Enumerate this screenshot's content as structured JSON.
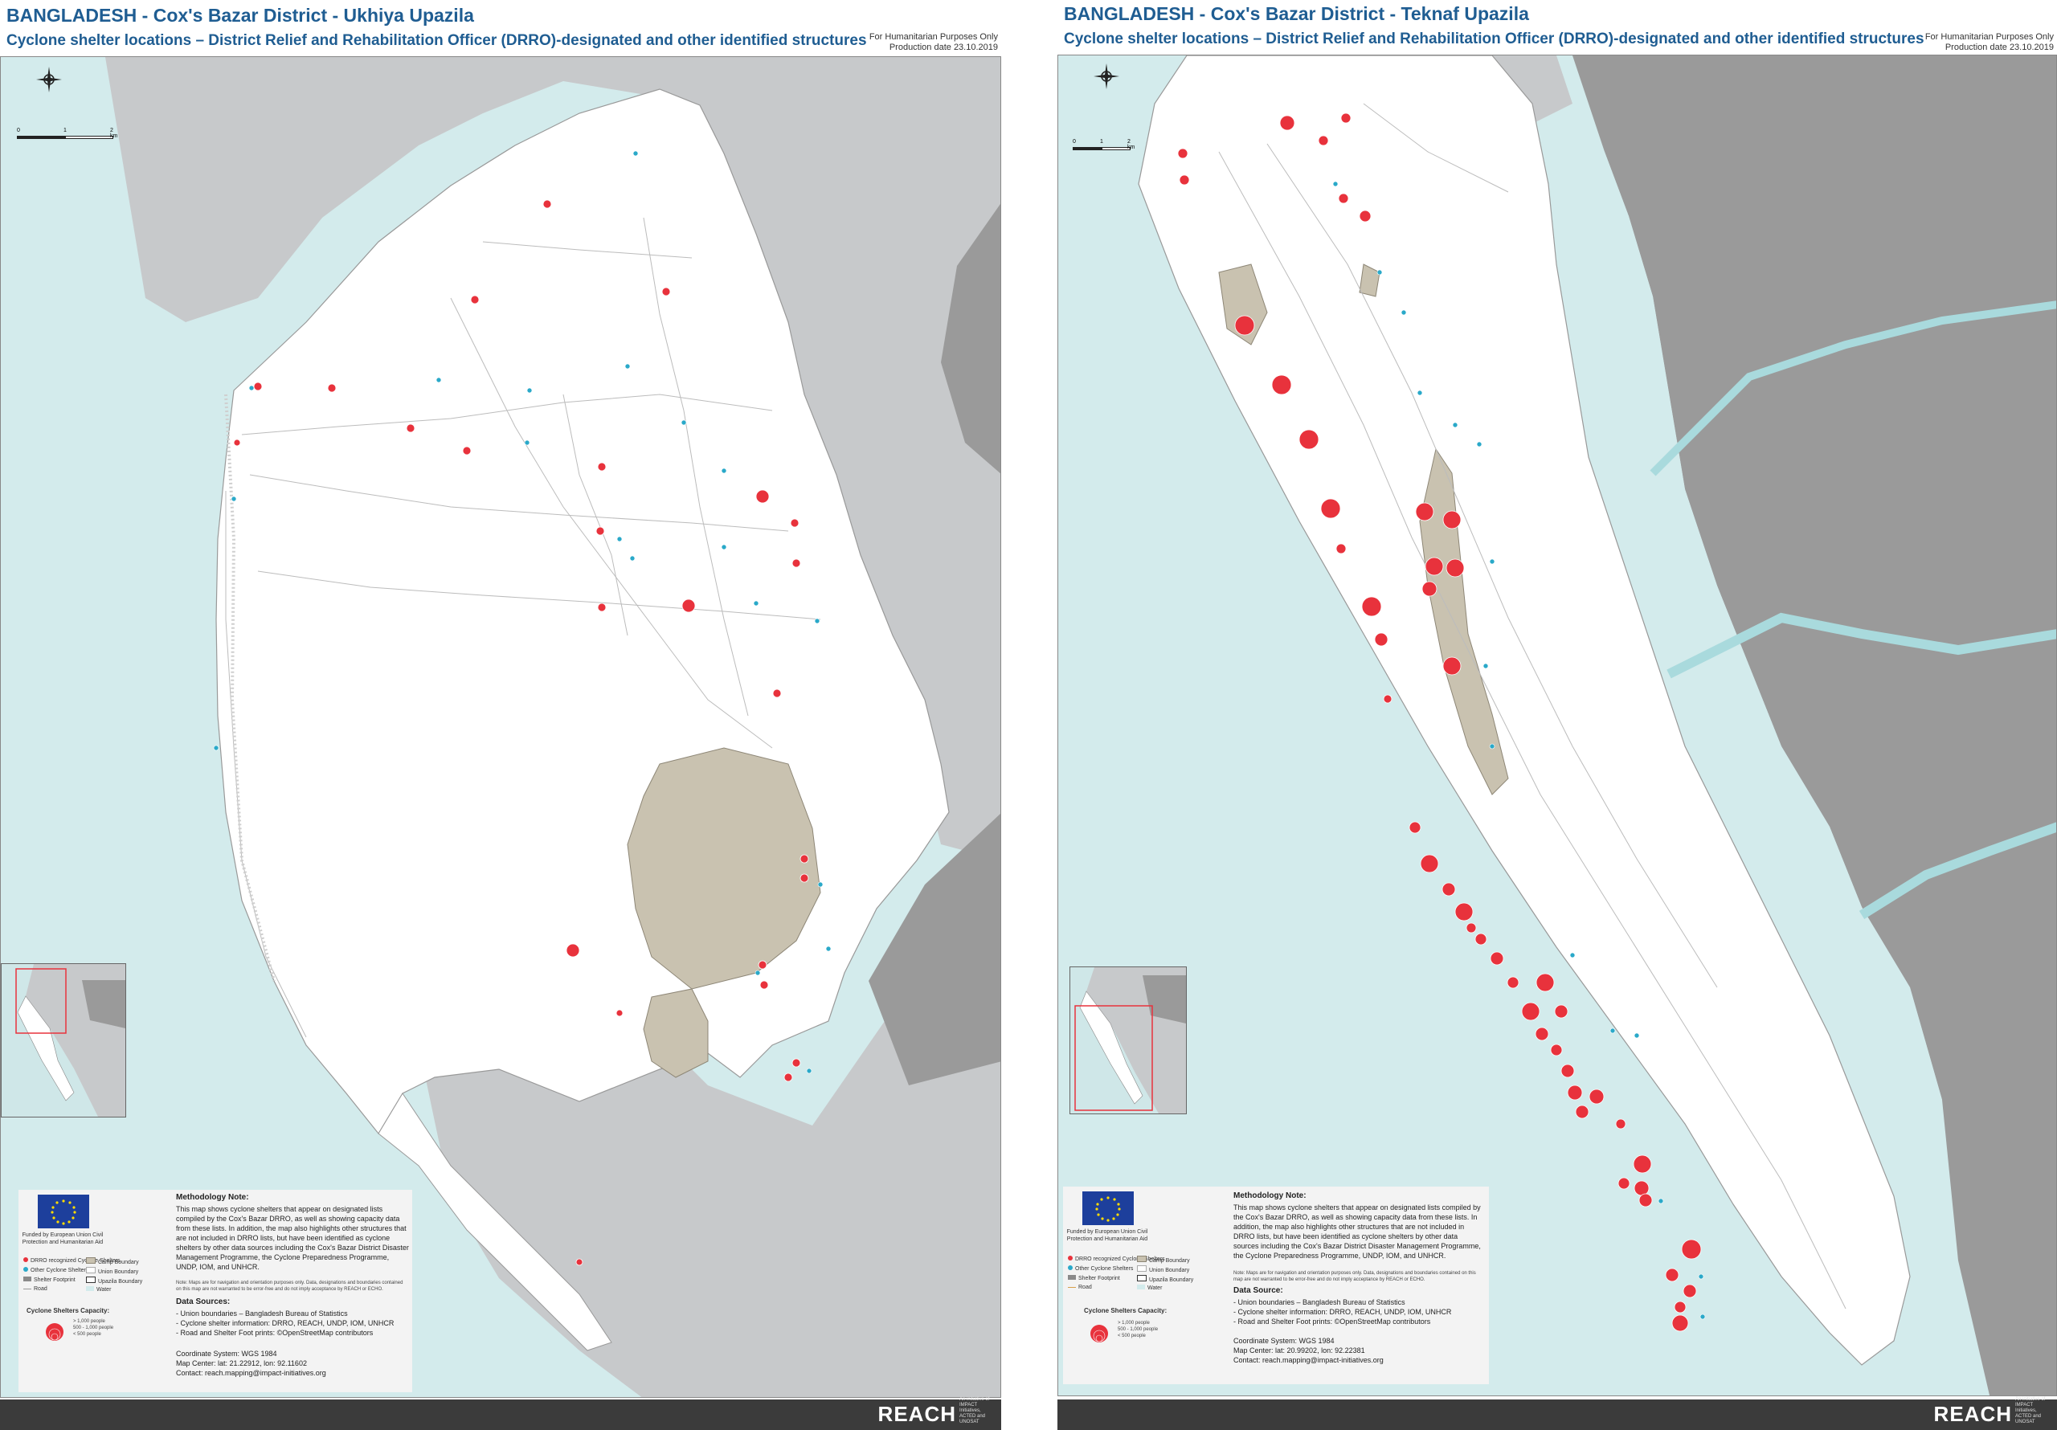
{
  "panels": [
    {
      "title": "BANGLADESH - Cox's Bazar District - Ukhiya Upazila",
      "subtitle": "Cyclone shelter locations – District Relief and Rehabilitation Officer (DRRO)-designated and other identified structures",
      "humanitarian": "For Humanitarian Purposes Only",
      "production_date": "Production date 23.10.2019",
      "funded_by": "Funded by European Union Civil Protection and Humanitarian Aid",
      "legend": {
        "drro": "DRRO recognized Cyclone Shelters",
        "other": "Other Cyclone Shelters",
        "shelter_footprint": "Shelter Footprint",
        "road": "Road",
        "camp": "Camp Boundary",
        "union": "Union Boundary",
        "upazila": "Upazila Boundary",
        "water": "Water"
      },
      "capacity_title": "Cyclone Shelters Capacity:",
      "capacity_items": [
        "> 1,000 people",
        "500 - 1,000 people",
        "< 500 people"
      ],
      "methodology_heading": "Methodology Note:",
      "methodology_text": "This map shows cyclone shelters that appear on designated lists compiled by the Cox's Bazar DRRO, as well as showing capacity data from these lists. In addition, the map also highlights other structures that are not included in DRRO lists, but have been identified as cyclone shelters by other data sources including the Cox's Bazar District Disaster Management Programme, the Cyclone Preparedness Programme, UNDP, IOM, and UNHCR.",
      "note_text": "Note: Maps are for navigation and orientation purposes only. Data, designations and boundaries contained on this map are not warranted to be error-free and do not imply acceptance by REACH or ECHO.",
      "data_sources_heading": "Data Sources:",
      "data_sources": [
        "- Union boundaries – Bangladesh Bureau of Statistics",
        "- Cyclone shelter information: DRRO, REACH, UNDP, IOM, UNHCR",
        "- Road and Shelter Foot prints: ©OpenStreetMap contributors"
      ],
      "coordinate_system": "Coordinate System: WGS 1984",
      "map_center": "Map Center: lat: 21.22912, lon: 92.11602",
      "contact": "Contact: reach.mapping@impact-initiatives.org",
      "scale": [
        "0",
        "1",
        "2 km"
      ],
      "brand": "REACH",
      "brand_tag": "An initiative of IMPACT Initiatives, ACTED and UNOSAT"
    },
    {
      "title": "BANGLADESH - Cox's Bazar District - Teknaf Upazila",
      "subtitle": "Cyclone shelter locations – District Relief and Rehabilitation Officer (DRRO)-designated and other identified structures",
      "humanitarian": "For Humanitarian Purposes Only",
      "production_date": "Production date 23.10.2019",
      "funded_by": "Funded by European Union Civil Protection and Humanitarian Aid",
      "legend": {
        "drro": "DRRO recognized Cyclone Shelters",
        "other": "Other Cyclone Shelters",
        "shelter_footprint": "Shelter Footprint",
        "road": "Road",
        "camp": "Camp Boundary",
        "union": "Union Boundary",
        "upazila": "Upazila Boundary",
        "water": "Water"
      },
      "capacity_title": "Cyclone Shelters Capacity:",
      "capacity_items": [
        "> 1,000 people",
        "500 - 1,000 people",
        "< 500 people"
      ],
      "methodology_heading": "Methodology Note:",
      "methodology_text": "This map shows cyclone shelters that appear on designated lists compiled by the Cox's Bazar DRRO, as well as showing capacity data from these lists. In addition, the map also highlights other structures that are not included in DRRO lists, but have been identified as cyclone shelters by other data sources including the Cox's Bazar District Disaster Management Programme, the Cyclone Preparedness Programme, UNDP, IOM, and UNHCR.",
      "note_text": "Note: Maps are for navigation and orientation purposes only. Data, designations and boundaries contained on this map are not warranted to be error-free and do not imply acceptance by REACH or ECHO.",
      "data_sources_heading": "Data Source:",
      "data_sources": [
        "- Union boundaries – Bangladesh Bureau of Statistics",
        "- Cyclone shelter information: DRRO, REACH, UNDP, IOM, UNHCR",
        "- Road and Shelter Foot prints: ©OpenStreetMap contributors"
      ],
      "coordinate_system": "Coordinate System: WGS 1984",
      "map_center": "Map Center: lat: 20.99202, lon: 92.22381",
      "contact": "Contact: reach.mapping@impact-initiatives.org",
      "scale": [
        "0",
        "1",
        "2 km"
      ],
      "brand": "REACH",
      "brand_tag": "An initiative of IMPACT Initiatives, ACTED and UNOSAT"
    }
  ],
  "colors": {
    "title_blue": "#1f5d92",
    "sea": "#d3ebec",
    "neighbor_land": "#c7c9cb",
    "myanmar_land": "#9a9a9a",
    "drro_red": "#e8323c",
    "other_blue": "#2aa9c9",
    "camp": "#c9c2b0",
    "river": "#a9dadd",
    "footer": "#3b3b3b"
  }
}
